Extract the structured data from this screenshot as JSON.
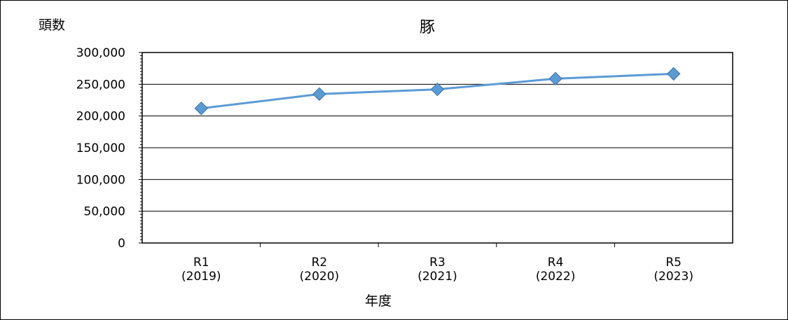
{
  "chart_data": {
    "type": "line",
    "title": "豚",
    "ylabel": "頭数",
    "xlabel": "年度",
    "categories": [
      [
        "R1",
        "(2019)"
      ],
      [
        "R2",
        "(2020)"
      ],
      [
        "R3",
        "(2021)"
      ],
      [
        "R4",
        "(2022)"
      ],
      [
        "R5",
        "(2023)"
      ]
    ],
    "series": [
      {
        "values": [
          212000,
          234500,
          242000,
          258800,
          266500
        ]
      }
    ],
    "ylim": [
      0,
      300000
    ],
    "yticks": [
      "0",
      "50,000",
      "100,000",
      "150,000",
      "200,000",
      "250,000",
      "300,000"
    ],
    "grid": true,
    "legend": "none",
    "colors": {
      "line": "#5b9bd5",
      "marker": "#5b9bd5",
      "marker_edge": "#41719c",
      "grid": "#000000"
    }
  }
}
